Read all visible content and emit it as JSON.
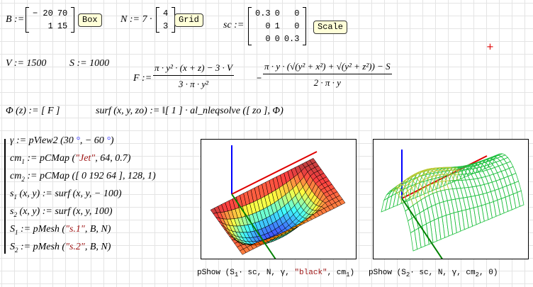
{
  "B": {
    "lhs": "B :=",
    "rows": [
      [
        "− 20",
        "70"
      ],
      [
        "1",
        "15"
      ]
    ],
    "button": "Box"
  },
  "N": {
    "lhs": "N := 7 ·",
    "rows": [
      [
        "4"
      ],
      [
        "3"
      ]
    ],
    "button": "Grid"
  },
  "sc": {
    "lhs": "sc :=",
    "rows": [
      [
        "0.3",
        "0",
        "0"
      ],
      [
        "0",
        "1",
        "0"
      ],
      [
        "0",
        "0",
        "0.3"
      ]
    ],
    "button": "Scale"
  },
  "V": "V := 1500",
  "S": "S := 1000",
  "F": {
    "lhs": "F :=",
    "num1": "π · y² · (x + z) − 3 · V",
    "den1": "3 · π · y²",
    "minus": "−",
    "num2": "π · y · (√(y² + x²) + √(y² + z²)) − S",
    "den2": "2 · π · y"
  },
  "Phi": "Φ (z) := [ F ]",
  "surf": "surf (x, y, zo) := ‖[ 1 ] · al_nleqsolve ([ zo ], Φ)",
  "block": [
    {
      "lhs": "γ := pView2 (",
      "args": [
        {
          "t": "30 "
        },
        {
          "t": "°",
          "c": "deg"
        },
        {
          "t": ", − 60 "
        },
        {
          "t": "°",
          "c": "deg"
        },
        {
          "t": ")"
        }
      ]
    },
    {
      "lhs": "cm",
      "sub": "1",
      "mid": " := pCMap (",
      "args": [
        {
          "t": "\"Jet\"",
          "c": "str"
        },
        {
          "t": ", 64, 0.7)"
        }
      ]
    },
    {
      "lhs": "cm",
      "sub": "2",
      "mid": " := pCMap (",
      "args": [
        {
          "t": "[ 0 192 64 ], 128, 1)"
        }
      ]
    },
    {
      "lhs": "s",
      "sub": "1",
      "mid": " (x, y) := surf (x, y, − 100)",
      "args": []
    },
    {
      "lhs": "s",
      "sub": "2",
      "mid": " (x, y) := surf (x, y, 100)",
      "args": []
    },
    {
      "lhs": "S",
      "sub": "1",
      "mid": " := pMesh (",
      "args": [
        {
          "t": "\"s.1\"",
          "c": "str"
        },
        {
          "t": ", B, N)"
        }
      ]
    },
    {
      "lhs": "S",
      "sub": "2",
      "mid": " := pMesh (",
      "args": [
        {
          "t": "\"s.2\"",
          "c": "str"
        },
        {
          "t": ", B, N)"
        }
      ]
    }
  ],
  "plots": [
    {
      "caption_pre": "pShow (S",
      "caption_sub": "1",
      "caption_mid": "· sc, N, γ, ",
      "caption_str": "\"black\"",
      "caption_post": ", cm",
      "caption_sub2": "1",
      "caption_end": ")",
      "style": "jet-surface",
      "edge": "#000000"
    },
    {
      "caption_pre": "pShow (S",
      "caption_sub": "2",
      "caption_mid": "· sc, N, γ, cm",
      "caption_str": "",
      "caption_post": "",
      "caption_sub2": "2",
      "caption_end": ", 0)",
      "style": "wireframe",
      "edge": "#00c040"
    }
  ],
  "colors": {
    "x_axis": "#e00000",
    "y_axis": "#008000",
    "z_axis": "#0000ff",
    "button_bg": "#ffffd8",
    "string": "#a01818",
    "degree": "#3a3aff"
  }
}
